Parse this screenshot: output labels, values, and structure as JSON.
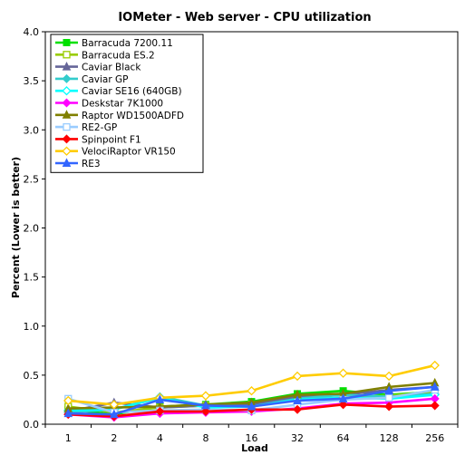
{
  "chart_data": {
    "type": "line",
    "title": "IOMeter - Web server - CPU utilization",
    "xlabel": "Load",
    "ylabel": "Percent (Lower is better)",
    "categories": [
      "1",
      "2",
      "4",
      "8",
      "16",
      "32",
      "64",
      "128",
      "256"
    ],
    "ylim": [
      0,
      4.0
    ],
    "yticks": [
      "0.0",
      "0.5",
      "1.0",
      "1.5",
      "2.0",
      "2.5",
      "3.0",
      "3.5",
      "4.0"
    ],
    "grid": false,
    "legend_position": "top-left",
    "series": [
      {
        "name": "Barracuda 7200.11",
        "color": "#00e000",
        "marker": "square",
        "values": [
          0.15,
          0.1,
          0.18,
          0.2,
          0.23,
          0.31,
          0.34,
          0.3,
          0.33
        ]
      },
      {
        "name": "Barracuda ES.2",
        "color": "#99cc00",
        "marker": "square-open",
        "values": [
          0.18,
          0.12,
          0.17,
          0.19,
          0.2,
          0.25,
          0.27,
          0.29,
          0.33
        ]
      },
      {
        "name": "Caviar Black",
        "color": "#666699",
        "marker": "triangle",
        "values": [
          0.13,
          0.22,
          0.17,
          0.19,
          0.2,
          0.28,
          0.3,
          0.35,
          0.38
        ]
      },
      {
        "name": "Caviar GP",
        "color": "#33cccc",
        "marker": "diamond",
        "values": [
          0.12,
          0.15,
          0.28,
          0.19,
          0.18,
          0.26,
          0.3,
          0.28,
          0.31
        ]
      },
      {
        "name": "Caviar SE16 (640GB)",
        "color": "#00ffff",
        "marker": "diamond-open",
        "values": [
          0.14,
          0.15,
          0.27,
          0.17,
          0.18,
          0.25,
          0.27,
          0.26,
          0.3
        ]
      },
      {
        "name": "Deskstar 7K1000",
        "color": "#ff00ff",
        "marker": "diamond",
        "values": [
          0.1,
          0.07,
          0.11,
          0.12,
          0.13,
          0.16,
          0.21,
          0.22,
          0.26
        ]
      },
      {
        "name": "Raptor WD1500ADFD",
        "color": "#808000",
        "marker": "triangle",
        "values": [
          0.16,
          0.17,
          0.18,
          0.2,
          0.22,
          0.3,
          0.31,
          0.38,
          0.42
        ]
      },
      {
        "name": "RE2-GP",
        "color": "#99ccff",
        "marker": "square-open",
        "values": [
          0.26,
          0.12,
          0.14,
          0.15,
          0.14,
          0.2,
          0.25,
          0.27,
          0.35
        ]
      },
      {
        "name": "Spinpoint F1",
        "color": "#ff0000",
        "marker": "diamond",
        "values": [
          0.1,
          0.08,
          0.13,
          0.13,
          0.15,
          0.15,
          0.2,
          0.18,
          0.19
        ]
      },
      {
        "name": "VelociRaptor VR150",
        "color": "#ffcc00",
        "marker": "diamond-open",
        "values": [
          0.24,
          0.2,
          0.27,
          0.29,
          0.34,
          0.49,
          0.52,
          0.49,
          0.6
        ]
      },
      {
        "name": "RE3",
        "color": "#3366ff",
        "marker": "triangle",
        "values": [
          0.11,
          0.1,
          0.25,
          0.19,
          0.18,
          0.24,
          0.26,
          0.34,
          0.38
        ]
      }
    ]
  }
}
